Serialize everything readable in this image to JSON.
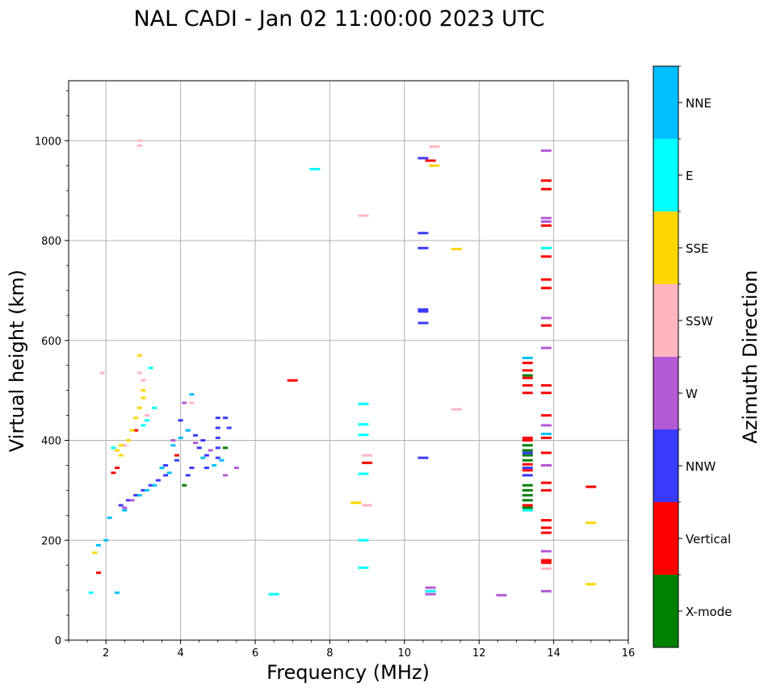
{
  "chart_data": {
    "type": "scatter",
    "title": "NAL CADI - Jan 02 11:00:00 2023 UTC",
    "xlabel": "Frequency (MHz)",
    "ylabel": "Virtual height (km)",
    "xlim": [
      1,
      16
    ],
    "ylim": [
      0,
      1120
    ],
    "xticks": [
      2,
      4,
      6,
      8,
      10,
      12,
      14,
      16
    ],
    "yticks": [
      0,
      200,
      400,
      600,
      800,
      1000
    ],
    "grid": true,
    "colorbar": {
      "label": "Azimuth Direction",
      "categories": [
        {
          "name": "X-mode",
          "color": "#008000"
        },
        {
          "name": "Vertical",
          "color": "#ff0000"
        },
        {
          "name": "NNW",
          "color": "#3a3aff"
        },
        {
          "name": "W",
          "color": "#b45ad6"
        },
        {
          "name": "SSW",
          "color": "#ffb6c1"
        },
        {
          "name": "SSE",
          "color": "#ffd700"
        },
        {
          "name": "E",
          "color": "#00ffff"
        },
        {
          "name": "NNE",
          "color": "#00bfff"
        }
      ]
    },
    "series": [
      {
        "name": "Vertical",
        "points": [
          [
            7.0,
            520
          ],
          [
            9.0,
            355
          ],
          [
            10.7,
            960
          ],
          [
            13.8,
            920
          ],
          [
            13.8,
            903
          ],
          [
            13.8,
            830
          ],
          [
            13.8,
            768
          ],
          [
            13.8,
            722
          ],
          [
            13.8,
            705
          ],
          [
            13.8,
            630
          ],
          [
            13.8,
            510
          ],
          [
            13.8,
            495
          ],
          [
            13.8,
            450
          ],
          [
            13.8,
            405
          ],
          [
            13.8,
            375
          ],
          [
            13.8,
            350
          ],
          [
            13.8,
            315
          ],
          [
            13.8,
            300
          ],
          [
            13.8,
            240
          ],
          [
            13.8,
            225
          ],
          [
            13.8,
            215
          ],
          [
            13.8,
            160
          ],
          [
            13.8,
            155
          ],
          [
            15.0,
            307
          ],
          [
            13.3,
            555
          ],
          [
            13.3,
            540
          ],
          [
            13.3,
            525
          ],
          [
            13.3,
            510
          ],
          [
            13.3,
            495
          ],
          [
            13.3,
            405
          ],
          [
            13.3,
            400
          ],
          [
            13.3,
            352
          ],
          [
            13.3,
            340
          ],
          [
            13.3,
            270
          ],
          [
            3.9,
            370
          ],
          [
            2.3,
            345
          ],
          [
            2.2,
            335
          ],
          [
            1.8,
            135
          ],
          [
            2.8,
            420
          ]
        ]
      },
      {
        "name": "NNW",
        "points": [
          [
            10.5,
            965
          ],
          [
            10.5,
            815
          ],
          [
            10.5,
            785
          ],
          [
            10.5,
            662
          ],
          [
            10.5,
            658
          ],
          [
            10.5,
            635
          ],
          [
            10.5,
            365
          ],
          [
            13.3,
            375
          ],
          [
            13.3,
            345
          ],
          [
            13.3,
            330
          ],
          [
            4.5,
            385
          ],
          [
            4.7,
            370
          ],
          [
            4.7,
            345
          ],
          [
            5.0,
            445
          ],
          [
            5.0,
            425
          ],
          [
            5.0,
            405
          ],
          [
            5.0,
            385
          ],
          [
            5.0,
            365
          ],
          [
            4.3,
            345
          ],
          [
            4.2,
            330
          ],
          [
            3.9,
            360
          ],
          [
            3.6,
            350
          ],
          [
            3.6,
            330
          ],
          [
            3.4,
            320
          ],
          [
            3.2,
            310
          ],
          [
            3.0,
            300
          ],
          [
            2.8,
            290
          ],
          [
            2.6,
            280
          ],
          [
            2.4,
            270
          ],
          [
            4.6,
            400
          ],
          [
            4.4,
            410
          ],
          [
            4.2,
            420
          ],
          [
            4.0,
            440
          ],
          [
            5.2,
            445
          ],
          [
            5.3,
            425
          ]
        ]
      },
      {
        "name": "X-mode",
        "points": [
          [
            13.3,
            390
          ],
          [
            13.3,
            380
          ],
          [
            13.3,
            370
          ],
          [
            13.3,
            360
          ],
          [
            13.3,
            310
          ],
          [
            13.3,
            300
          ],
          [
            13.3,
            290
          ],
          [
            13.3,
            280
          ],
          [
            13.3,
            265
          ],
          [
            13.3,
            530
          ],
          [
            4.1,
            310
          ],
          [
            5.2,
            385
          ]
        ]
      },
      {
        "name": "W",
        "points": [
          [
            13.8,
            980
          ],
          [
            13.8,
            845
          ],
          [
            13.8,
            838
          ],
          [
            13.8,
            645
          ],
          [
            13.8,
            585
          ],
          [
            13.8,
            430
          ],
          [
            13.8,
            350
          ],
          [
            13.8,
            178
          ],
          [
            13.8,
            98
          ],
          [
            12.6,
            90
          ],
          [
            10.7,
            105
          ],
          [
            10.7,
            92
          ],
          [
            5.5,
            345
          ],
          [
            5.2,
            330
          ],
          [
            4.1,
            475
          ],
          [
            3.8,
            400
          ],
          [
            2.7,
            280
          ],
          [
            2.5,
            265
          ],
          [
            4.4,
            395
          ],
          [
            4.8,
            380
          ]
        ]
      },
      {
        "name": "SSW",
        "points": [
          [
            2.9,
            1000
          ],
          [
            2.9,
            990
          ],
          [
            8.9,
            850
          ],
          [
            10.8,
            988
          ],
          [
            11.4,
            462
          ],
          [
            9.0,
            370
          ],
          [
            9.0,
            270
          ],
          [
            13.8,
            143
          ],
          [
            3.0,
            520
          ],
          [
            2.9,
            535
          ],
          [
            1.9,
            535
          ],
          [
            4.3,
            475
          ],
          [
            3.1,
            450
          ],
          [
            2.5,
            390
          ]
        ]
      },
      {
        "name": "SSE",
        "points": [
          [
            10.8,
            950
          ],
          [
            11.4,
            783
          ],
          [
            8.7,
            275
          ],
          [
            15.0,
            235
          ],
          [
            15.0,
            112
          ],
          [
            13.8,
            785
          ],
          [
            2.9,
            570
          ],
          [
            3.0,
            500
          ],
          [
            3.0,
            485
          ],
          [
            2.9,
            465
          ],
          [
            2.8,
            445
          ],
          [
            2.7,
            420
          ],
          [
            2.6,
            400
          ],
          [
            2.4,
            390
          ],
          [
            2.3,
            380
          ],
          [
            2.4,
            370
          ],
          [
            1.7,
            175
          ]
        ]
      },
      {
        "name": "E",
        "points": [
          [
            7.6,
            943
          ],
          [
            8.9,
            473
          ],
          [
            8.9,
            432
          ],
          [
            8.9,
            411
          ],
          [
            8.9,
            333
          ],
          [
            8.9,
            200
          ],
          [
            8.9,
            145
          ],
          [
            6.5,
            92
          ],
          [
            10.7,
            98
          ],
          [
            13.3,
            260
          ],
          [
            13.8,
            785
          ],
          [
            3.2,
            545
          ],
          [
            3.3,
            465
          ],
          [
            3.1,
            440
          ],
          [
            3.0,
            430
          ],
          [
            2.2,
            385
          ],
          [
            1.6,
            95
          ]
        ]
      },
      {
        "name": "NNE",
        "points": [
          [
            13.8,
            413
          ],
          [
            13.3,
            565
          ],
          [
            3.5,
            345
          ],
          [
            3.7,
            335
          ],
          [
            3.3,
            310
          ],
          [
            3.1,
            300
          ],
          [
            2.9,
            290
          ],
          [
            2.5,
            260
          ],
          [
            2.1,
            245
          ],
          [
            2.0,
            200
          ],
          [
            1.8,
            190
          ],
          [
            2.3,
            95
          ],
          [
            4.3,
            492
          ],
          [
            4.2,
            420
          ],
          [
            4.0,
            405
          ],
          [
            3.8,
            390
          ],
          [
            4.6,
            365
          ],
          [
            4.9,
            350
          ],
          [
            5.1,
            360
          ]
        ]
      }
    ]
  }
}
